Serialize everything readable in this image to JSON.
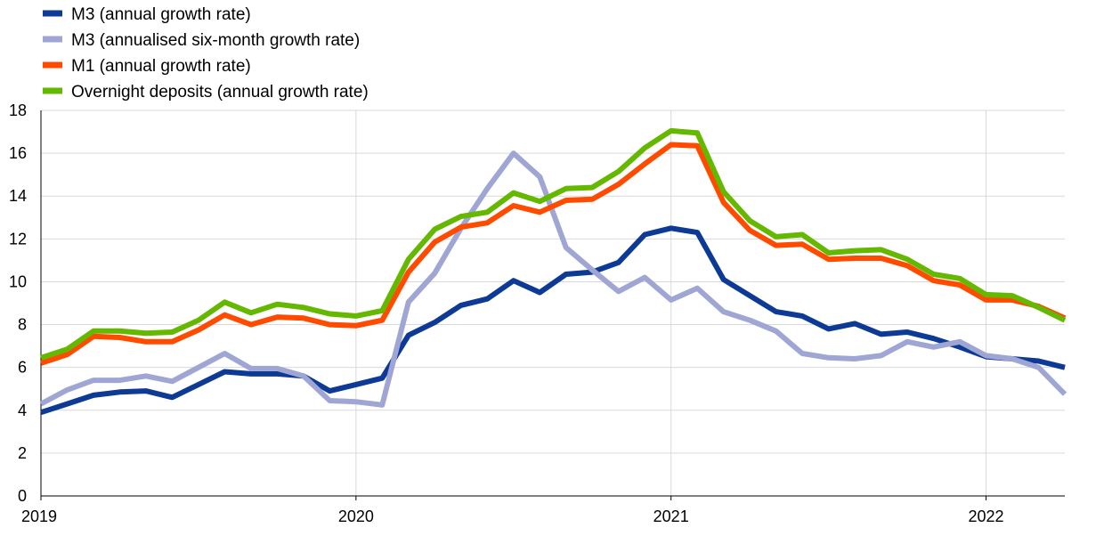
{
  "chart_data": {
    "type": "line",
    "title": "",
    "xlabel": "",
    "ylabel": "",
    "ylim": [
      0,
      18
    ],
    "yticks": [
      0,
      2,
      4,
      6,
      8,
      10,
      12,
      14,
      16,
      18
    ],
    "xlim": [
      "2019-01",
      "2022-04"
    ],
    "xticks": [
      {
        "label": "2019",
        "date": "2019-01"
      },
      {
        "label": "2020",
        "date": "2020-01"
      },
      {
        "label": "2021",
        "date": "2021-01"
      },
      {
        "label": "2022",
        "date": "2022-01"
      }
    ],
    "grid": true,
    "legend_position": "top-left",
    "x": [
      "2019-01",
      "2019-02",
      "2019-03",
      "2019-04",
      "2019-05",
      "2019-06",
      "2019-07",
      "2019-08",
      "2019-09",
      "2019-10",
      "2019-11",
      "2019-12",
      "2020-01",
      "2020-02",
      "2020-03",
      "2020-04",
      "2020-05",
      "2020-06",
      "2020-07",
      "2020-08",
      "2020-09",
      "2020-10",
      "2020-11",
      "2020-12",
      "2021-01",
      "2021-02",
      "2021-03",
      "2021-04",
      "2021-05",
      "2021-06",
      "2021-07",
      "2021-08",
      "2021-09",
      "2021-10",
      "2021-11",
      "2021-12",
      "2022-01",
      "2022-02",
      "2022-03",
      "2022-04"
    ],
    "series": [
      {
        "name": "M3 (annual growth rate)",
        "color": "#0d3a94",
        "values": [
          3.9,
          4.3,
          4.7,
          4.85,
          4.9,
          4.6,
          5.2,
          5.8,
          5.7,
          5.7,
          5.6,
          4.9,
          5.2,
          5.5,
          7.5,
          8.1,
          8.9,
          9.2,
          10.05,
          9.5,
          10.35,
          10.45,
          10.9,
          12.2,
          12.5,
          12.3,
          10.1,
          9.35,
          8.6,
          8.4,
          7.8,
          8.05,
          7.55,
          7.65,
          7.35,
          6.95,
          6.5,
          6.4,
          6.3,
          6.0
        ]
      },
      {
        "name": "M3 (annualised six-month growth rate)",
        "color": "#9fa6d4",
        "values": [
          4.3,
          4.95,
          5.4,
          5.4,
          5.6,
          5.35,
          6.0,
          6.65,
          5.95,
          5.95,
          5.6,
          4.45,
          4.4,
          4.25,
          9.05,
          10.4,
          12.5,
          14.35,
          16.0,
          14.9,
          11.6,
          10.55,
          9.55,
          10.2,
          9.15,
          9.7,
          8.6,
          8.2,
          7.7,
          6.65,
          6.45,
          6.4,
          6.55,
          7.2,
          6.95,
          7.2,
          6.55,
          6.4,
          6.0,
          4.75
        ]
      },
      {
        "name": "M1 (annual growth rate)",
        "color": "#ff4b00",
        "values": [
          6.2,
          6.6,
          7.45,
          7.4,
          7.2,
          7.2,
          7.75,
          8.45,
          8.0,
          8.35,
          8.3,
          8.0,
          7.95,
          8.2,
          10.45,
          11.85,
          12.55,
          12.75,
          13.55,
          13.25,
          13.8,
          13.85,
          14.55,
          15.5,
          16.4,
          16.35,
          13.7,
          12.4,
          11.7,
          11.75,
          11.05,
          11.1,
          11.1,
          10.75,
          10.05,
          9.85,
          9.15,
          9.15,
          8.85,
          8.3
        ]
      },
      {
        "name": "Overnight deposits (annual growth rate)",
        "color": "#65b800",
        "values": [
          6.45,
          6.85,
          7.7,
          7.7,
          7.6,
          7.65,
          8.2,
          9.05,
          8.55,
          8.95,
          8.8,
          8.5,
          8.4,
          8.65,
          11.05,
          12.45,
          13.05,
          13.25,
          14.15,
          13.75,
          14.35,
          14.4,
          15.15,
          16.25,
          17.05,
          16.95,
          14.2,
          12.85,
          12.1,
          12.2,
          11.35,
          11.45,
          11.5,
          11.05,
          10.35,
          10.15,
          9.4,
          9.35,
          8.8,
          8.2
        ]
      }
    ]
  }
}
